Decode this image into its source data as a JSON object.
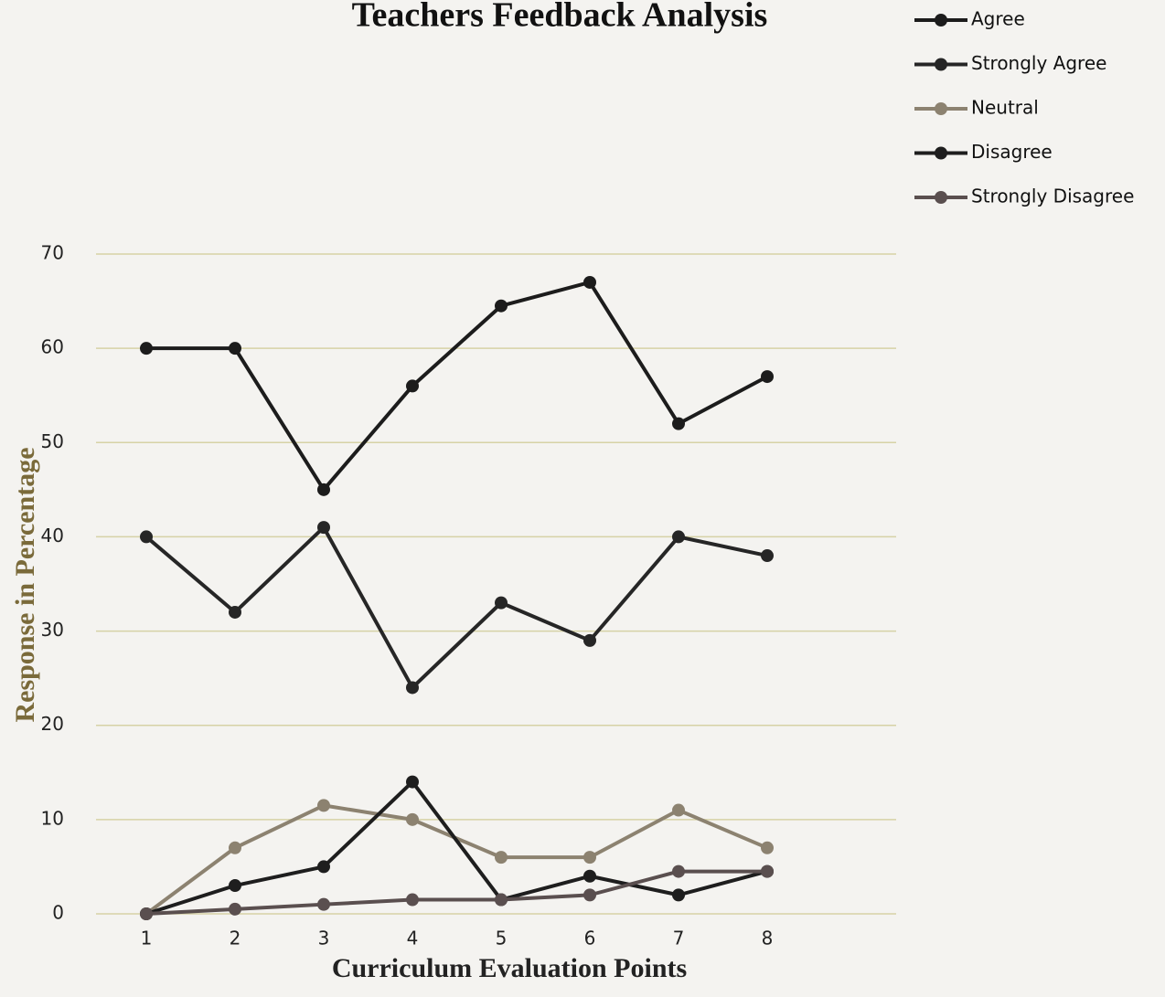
{
  "chart_data": {
    "type": "line",
    "title": "Teachers Feedback Analysis",
    "x_label": "Curriculum Evaluation Points",
    "y_label": "Response in Percentage",
    "categories": [
      "1",
      "2",
      "3",
      "4",
      "5",
      "6",
      "7",
      "8"
    ],
    "series": [
      {
        "name": "Agree",
        "color": "#1c1c1c",
        "values": [
          60,
          60,
          45,
          56,
          64.5,
          67,
          52,
          57
        ]
      },
      {
        "name": "Strongly Agree",
        "color": "#262626",
        "values": [
          40,
          32,
          41,
          24,
          33,
          29,
          40,
          38
        ]
      },
      {
        "name": "Neutral",
        "color": "#8c8270",
        "values": [
          0,
          7,
          11.5,
          10,
          6,
          6,
          11,
          7
        ]
      },
      {
        "name": "Disagree",
        "color": "#1e1e1e",
        "values": [
          0,
          3,
          5,
          14,
          1.5,
          4,
          2,
          4.5
        ]
      },
      {
        "name": "Strongly Disagree",
        "color": "#5a4f4f",
        "values": [
          0,
          0.5,
          1,
          1.5,
          1.5,
          2,
          4.5,
          4.5
        ]
      }
    ],
    "ylim": [
      0,
      70
    ],
    "yticks": [
      0,
      10,
      20,
      30,
      40,
      50,
      60,
      70
    ],
    "grid": true,
    "legend": "top-right"
  }
}
